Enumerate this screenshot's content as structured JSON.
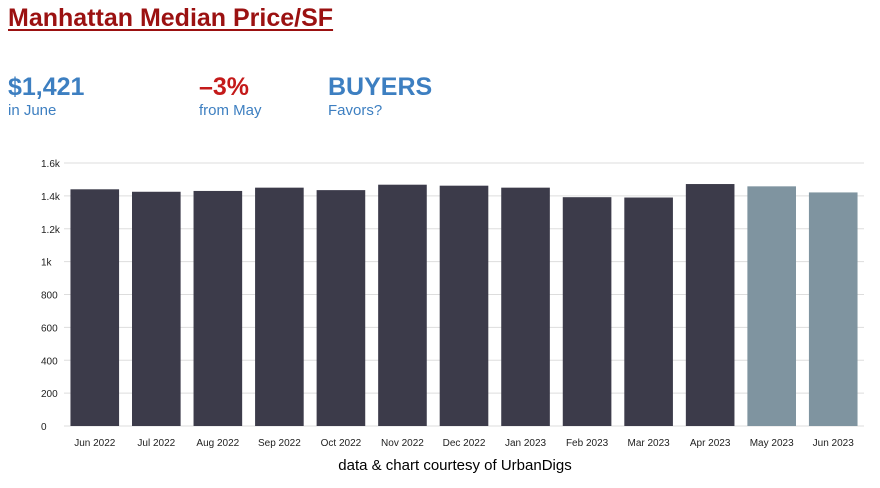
{
  "header": {
    "title": "Manhattan Median Price/SF"
  },
  "stats": [
    {
      "value": "$1,421",
      "label": "in June",
      "color": "#3d7fc1"
    },
    {
      "value": "–3%",
      "label": "from May",
      "color": "#c41a1a"
    },
    {
      "value": "BUYERS",
      "label": "Favors?",
      "color": "#3d7fc1"
    }
  ],
  "credit": "data & chart courtesy of UrbanDigs",
  "chart_data": {
    "type": "bar",
    "categories": [
      "Jun 2022",
      "Jul 2022",
      "Aug 2022",
      "Sep 2022",
      "Oct 2022",
      "Nov 2022",
      "Dec 2022",
      "Jan 2023",
      "Feb 2023",
      "Mar 2023",
      "Apr 2023",
      "May 2023",
      "Jun 2023"
    ],
    "values": [
      1440,
      1425,
      1430,
      1450,
      1435,
      1468,
      1462,
      1450,
      1392,
      1390,
      1472,
      1458,
      1421
    ],
    "ylim": [
      0,
      1600
    ],
    "yticks": [
      0,
      200,
      400,
      600,
      800,
      1000,
      1200,
      1400,
      1600
    ],
    "ytick_labels": [
      "0",
      "200",
      "400",
      "600",
      "800",
      "1k",
      "1.2k",
      "1.4k",
      "1.6k"
    ],
    "grid": true,
    "colors": {
      "bar": "#3c3b4a",
      "highlight": "#7f94a0",
      "highlight_categories": [
        "May 2023",
        "Jun 2023"
      ],
      "grid": "#dddddd"
    }
  }
}
